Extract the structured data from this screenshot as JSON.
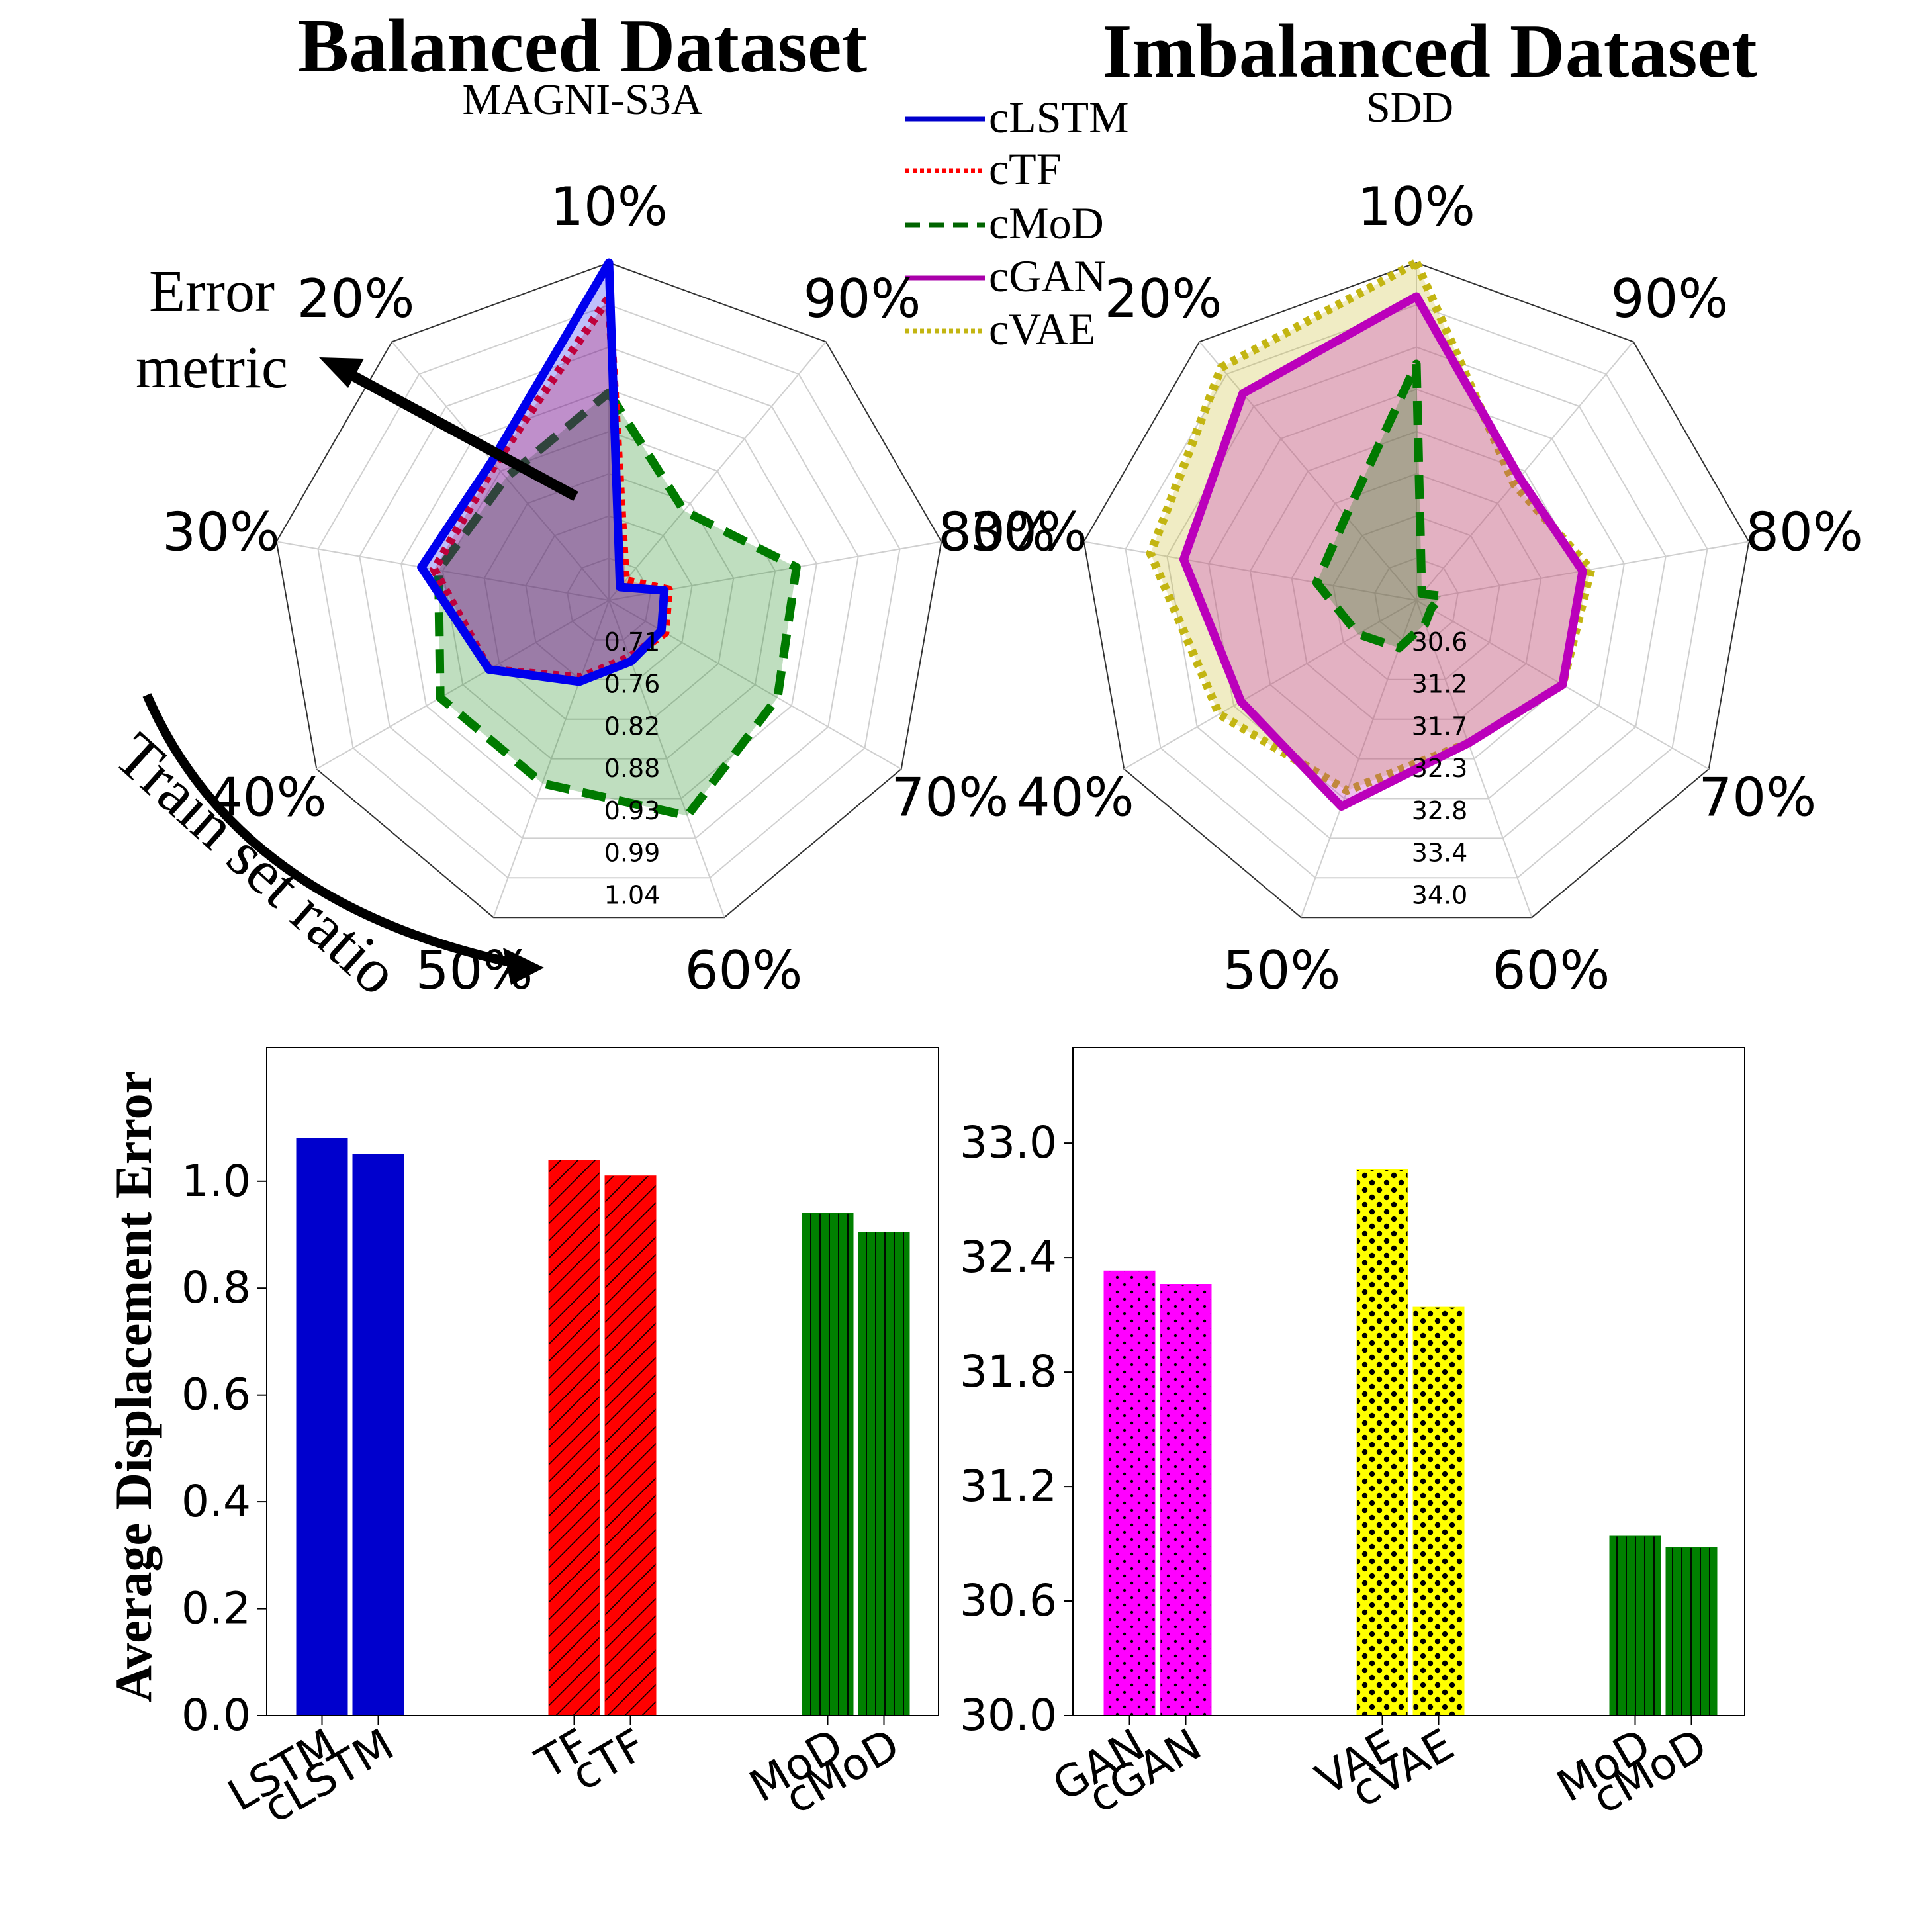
{
  "chart_data": [
    {
      "type": "radar",
      "title": "Balanced Dataset",
      "subtitle": "MAGNI-S3A",
      "axes": [
        "10%",
        "90%",
        "80%",
        "70%",
        "60%",
        "50%",
        "40%",
        "30%",
        "20%"
      ],
      "radial_ticks": [
        "0.71",
        "0.76",
        "0.82",
        "0.88",
        "0.93",
        "0.99",
        "1.04"
      ],
      "range": [
        0.65,
        1.04
      ],
      "grid": true,
      "annotations": {
        "error_metric_line1": "Error",
        "error_metric_line2": "metric",
        "train_set_ratio": "Train set ratio"
      },
      "series": [
        {
          "name": "cMoD",
          "color": "#007a00",
          "style": "dashed",
          "values": [
            0.89,
            0.785,
            0.87,
            0.875,
            0.915,
            0.875,
            0.875,
            0.85,
            0.835
          ]
        },
        {
          "name": "cTF",
          "color": "#ff0000",
          "style": "dotted",
          "values": [
            1.0,
            0.68,
            0.72,
            0.725,
            0.72,
            0.745,
            0.81,
            0.855,
            0.855
          ]
        },
        {
          "name": "cLSTM",
          "color": "#0000ee",
          "style": "solid",
          "values": [
            1.04,
            0.67,
            0.715,
            0.72,
            0.725,
            0.75,
            0.81,
            0.87,
            0.86
          ]
        }
      ]
    },
    {
      "type": "radar",
      "title": "Imbalanced Dataset",
      "subtitle": "SDD",
      "axes": [
        "10%",
        "90%",
        "80%",
        "70%",
        "60%",
        "50%",
        "40%",
        "30%",
        "20%"
      ],
      "radial_ticks": [
        "30.6",
        "31.2",
        "31.7",
        "32.3",
        "32.8",
        "33.4",
        "34.0"
      ],
      "range": [
        30.0,
        34.0
      ],
      "grid": true,
      "series": [
        {
          "name": "cVAE",
          "color": "#c3b512",
          "style": "dotted",
          "values": [
            34.0,
            31.8,
            32.1,
            32.0,
            31.8,
            32.4,
            32.7,
            33.2,
            33.6
          ]
        },
        {
          "name": "cGAN",
          "color": "#bb00bb",
          "style": "solid",
          "values": [
            33.6,
            31.9,
            32.0,
            32.0,
            31.8,
            32.6,
            32.4,
            32.8,
            33.2
          ]
        },
        {
          "name": "cMoD",
          "color": "#007a00",
          "style": "dashed",
          "values": [
            32.8,
            30.1,
            30.3,
            30.2,
            30.3,
            30.6,
            30.8,
            31.2,
            31.3
          ]
        }
      ]
    },
    {
      "type": "bar",
      "ylabel": "Average Displacement Error",
      "categories": [
        "LSTM",
        "cLSTM",
        "TF",
        "cTF",
        "MoD",
        "cMoD"
      ],
      "values": [
        1.08,
        1.05,
        1.04,
        1.01,
        0.94,
        0.905
      ],
      "ylim": [
        0,
        1.25
      ],
      "yticks": [
        "0.0",
        "0.2",
        "0.4",
        "0.6",
        "0.8",
        "1.0"
      ],
      "colors": [
        "#0000cd",
        "#0000cd",
        "#ff0000",
        "#ff0000",
        "#008000",
        "#008000"
      ],
      "hatches": [
        "none",
        "none",
        "diag",
        "diag",
        "vert",
        "vert"
      ]
    },
    {
      "type": "bar",
      "categories": [
        "GAN",
        "cGAN",
        "VAE",
        "cVAE",
        "MoD",
        "cMoD"
      ],
      "values": [
        32.33,
        32.26,
        32.86,
        32.14,
        30.94,
        30.88
      ],
      "ylim": [
        30.0,
        33.5
      ],
      "yticks": [
        "30.0",
        "30.6",
        "31.2",
        "31.8",
        "32.4",
        "33.0"
      ],
      "colors": [
        "#ff00ff",
        "#ff00ff",
        "#ffff00",
        "#ffff00",
        "#008000",
        "#008000"
      ],
      "hatches": [
        "dots",
        "dots",
        "stars",
        "stars",
        "vert",
        "vert"
      ]
    }
  ],
  "legend": [
    {
      "label": "cLSTM",
      "color": "#0000cc",
      "style": "solid"
    },
    {
      "label": "cTF",
      "color": "#ff0000",
      "style": "dotted"
    },
    {
      "label": "cMoD",
      "color": "#006400",
      "style": "dashed"
    },
    {
      "label": "cGAN",
      "color": "#aa00aa",
      "style": "solid"
    },
    {
      "label": "cVAE",
      "color": "#c3b512",
      "style": "dotted"
    }
  ]
}
